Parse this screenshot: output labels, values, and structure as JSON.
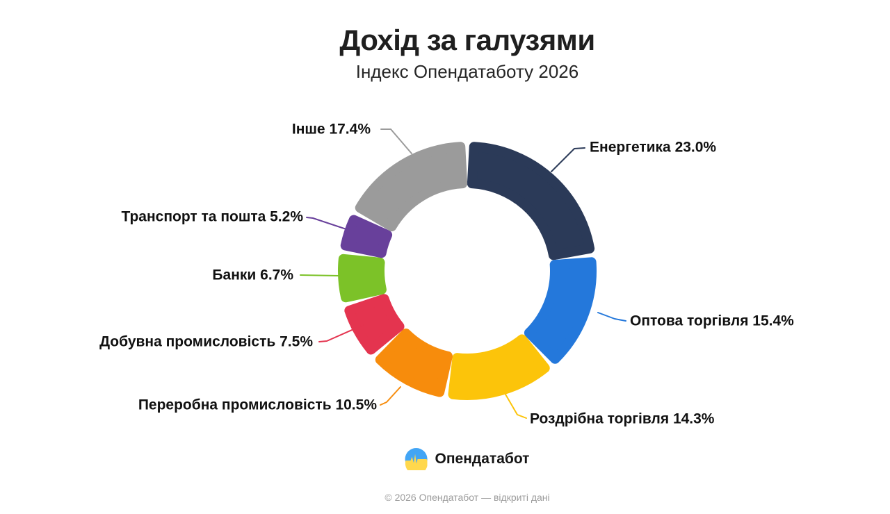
{
  "page": {
    "title": "Дохід за галузями",
    "subtitle": "Індекс Опендатаботу 2026",
    "footer": "© 2026 Опендатабот — відкриті дані"
  },
  "brand": {
    "name": "Опендатабот",
    "logo_top_color": "#42A5F5",
    "logo_bottom_color": "#FFD84D"
  },
  "chart_data": {
    "type": "pie",
    "variant": "donut",
    "title": "Дохід за галузями",
    "subtitle": "Індекс Опендатаботу 2026",
    "unit": "%",
    "start_angle_deg": 0,
    "direction": "clockwise",
    "legend_position": "callout-labels",
    "segments": [
      {
        "label": "Енергетика",
        "value": 23.0,
        "color": "#2B3A58"
      },
      {
        "label": "Оптова торгівля",
        "value": 15.4,
        "color": "#2478DB"
      },
      {
        "label": "Роздрібна торгівля",
        "value": 14.3,
        "color": "#FCC40A"
      },
      {
        "label": "Переробна промисловість",
        "value": 10.5,
        "color": "#F78C0C"
      },
      {
        "label": "Добувна промисловість",
        "value": 7.5,
        "color": "#E4344F"
      },
      {
        "label": "Банки",
        "value": 6.7,
        "color": "#7CC228"
      },
      {
        "label": "Транспорт та пошта",
        "value": 5.2,
        "color": "#68409B"
      },
      {
        "label": "Інше",
        "value": 17.4,
        "color": "#9B9B9B"
      }
    ]
  }
}
